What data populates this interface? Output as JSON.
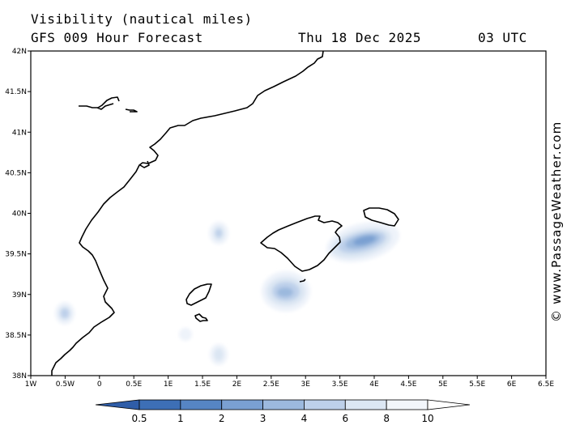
{
  "header": {
    "title": "Visibility (nautical miles)",
    "subtitle": "GFS 009 Hour Forecast",
    "date": "Thu 18 Dec 2025",
    "time": "03 UTC"
  },
  "credit": "© www.PassageWeather.com",
  "map": {
    "lon_range": [
      -1,
      6.5
    ],
    "lat_range": [
      38,
      42
    ],
    "x_ticks": [
      "1W",
      "0.5W",
      "0",
      "0.5E",
      "1E",
      "1.5E",
      "2E",
      "2.5E",
      "3E",
      "3.5E",
      "4E",
      "4.5E",
      "5E",
      "5.5E",
      "6E",
      "6.5E"
    ],
    "y_ticks": [
      "42N",
      "41.5N",
      "41N",
      "40.5N",
      "40N",
      "39.5N",
      "39N",
      "38.5N",
      "38N"
    ]
  },
  "colorbar": {
    "labels": [
      "0.5",
      "1",
      "2",
      "3",
      "4",
      "6",
      "8",
      "10"
    ],
    "colors": [
      "#3d6fb6",
      "#5685c4",
      "#7aa0d2",
      "#9cb9de",
      "#bdd0ea",
      "#dce7f4",
      "#f2f6fb"
    ]
  }
}
